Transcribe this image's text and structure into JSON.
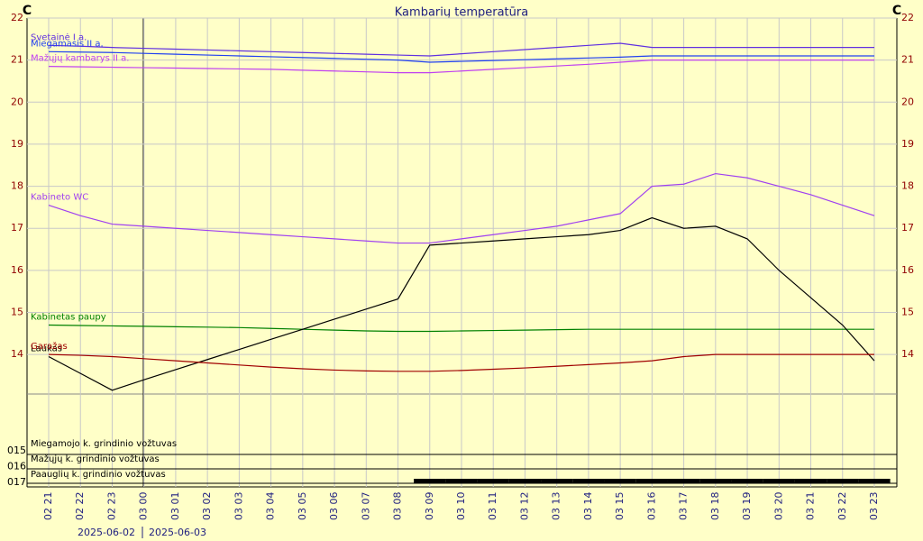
{
  "chart_data": [
    {
      "type": "line",
      "title": "Kambarių temperatūra",
      "y_unit": "C",
      "categories": [
        "02 21",
        "02 22",
        "02 23",
        "03 00",
        "03 01",
        "03 02",
        "03 03",
        "03 04",
        "03 05",
        "03 06",
        "03 07",
        "03 08",
        "03 09",
        "03 10",
        "03 11",
        "03 12",
        "03 13",
        "03 14",
        "03 15",
        "03 16",
        "03 17",
        "03 18",
        "03 19",
        "03 20",
        "03 21",
        "03 22",
        "03 23"
      ],
      "dates": [
        "2025-06-02",
        "2025-06-03"
      ],
      "ylim": [
        13.06,
        22
      ],
      "yticks": [
        14,
        15,
        16,
        17,
        18,
        19,
        20,
        21,
        22
      ],
      "grid": true,
      "series": [
        {
          "name": "Svetainė I a.",
          "color": "#6030e0",
          "values": [
            21.35,
            21.33,
            21.3,
            21.28,
            21.26,
            21.24,
            21.22,
            21.2,
            21.18,
            21.16,
            21.14,
            21.12,
            21.1,
            21.15,
            21.2,
            21.25,
            21.3,
            21.35,
            21.4,
            21.3,
            21.3,
            21.3,
            21.3,
            21.3,
            21.3,
            21.3,
            21.3
          ]
        },
        {
          "name": "Miegamasis II a.",
          "color": "#2040f0",
          "values": [
            21.2,
            21.19,
            21.18,
            21.16,
            21.14,
            21.12,
            21.1,
            21.08,
            21.06,
            21.04,
            21.02,
            21.0,
            20.95,
            20.97,
            20.99,
            21.01,
            21.03,
            21.05,
            21.07,
            21.1,
            21.1,
            21.1,
            21.1,
            21.1,
            21.1,
            21.1,
            21.1
          ]
        },
        {
          "name": "Mažųjų kambarys II a.",
          "color": "#c040f0",
          "values": [
            20.85,
            20.84,
            20.83,
            20.82,
            20.81,
            20.8,
            20.79,
            20.78,
            20.76,
            20.74,
            20.72,
            20.7,
            20.7,
            20.74,
            20.78,
            20.82,
            20.86,
            20.9,
            20.95,
            21.0,
            21.0,
            21.0,
            21.0,
            21.0,
            21.0,
            21.0,
            21.0
          ]
        },
        {
          "name": "Kabineto WC",
          "color": "#a040f0",
          "values": [
            17.55,
            17.3,
            17.1,
            17.05,
            17.0,
            16.95,
            16.9,
            16.85,
            16.8,
            16.75,
            16.7,
            16.65,
            16.65,
            16.75,
            16.85,
            16.95,
            17.05,
            17.2,
            17.35,
            18.0,
            18.05,
            18.3,
            18.2,
            18.0,
            17.8,
            17.55,
            17.3
          ]
        },
        {
          "name": "Kabinetas paupy",
          "color": "#008000",
          "values": [
            14.7,
            14.69,
            14.68,
            14.67,
            14.66,
            14.65,
            14.64,
            14.62,
            14.6,
            14.58,
            14.56,
            14.55,
            14.55,
            14.56,
            14.57,
            14.58,
            14.59,
            14.6,
            14.6,
            14.6,
            14.6,
            14.6,
            14.6,
            14.6,
            14.6,
            14.6,
            14.6
          ]
        },
        {
          "name": "Laukas",
          "color": "#000000",
          "values": [
            13.95,
            13.55,
            13.15,
            13.4,
            13.64,
            13.88,
            14.12,
            14.36,
            14.6,
            14.84,
            15.08,
            15.32,
            16.6,
            16.65,
            16.7,
            16.75,
            16.8,
            16.85,
            16.95,
            17.25,
            17.0,
            17.05,
            16.75,
            16.0,
            15.35,
            14.7,
            13.85
          ]
        },
        {
          "name": "Garažas",
          "color": "#a00000",
          "values": [
            14.0,
            13.98,
            13.95,
            13.9,
            13.85,
            13.8,
            13.75,
            13.7,
            13.66,
            13.63,
            13.61,
            13.6,
            13.6,
            13.62,
            13.65,
            13.68,
            13.72,
            13.76,
            13.8,
            13.85,
            13.95,
            14.0,
            14.0,
            14.0,
            14.0,
            14.0,
            14.0
          ]
        }
      ]
    },
    {
      "type": "timeline",
      "rows": [
        "015",
        "016",
        "017"
      ],
      "series": [
        {
          "name": "Miegamojo k. grindinio vožtuvas",
          "color": "#000000",
          "values": [
            0,
            0,
            0,
            0,
            0,
            0,
            0,
            0,
            0,
            0,
            0,
            0,
            0,
            0,
            0,
            0,
            0,
            0,
            0,
            0,
            0,
            0,
            0,
            0,
            0,
            0,
            0
          ]
        },
        {
          "name": "Mažųjų k. grindinio vožtuvas",
          "color": "#000000",
          "values": [
            0,
            0,
            0,
            0,
            0,
            0,
            0,
            0,
            0,
            0,
            0,
            0,
            0,
            0,
            0,
            0,
            0,
            0,
            0,
            0,
            0,
            0,
            0,
            0,
            0,
            0,
            0
          ]
        },
        {
          "name": "Paauglių k. grindinio vožtuvas",
          "color": "#000000",
          "values": [
            0,
            0,
            0,
            0,
            0,
            0,
            0,
            0,
            0,
            0,
            0,
            0,
            1,
            1,
            1,
            1,
            1,
            1,
            1,
            1,
            1,
            1,
            1,
            1,
            1,
            1,
            1
          ]
        }
      ]
    }
  ]
}
